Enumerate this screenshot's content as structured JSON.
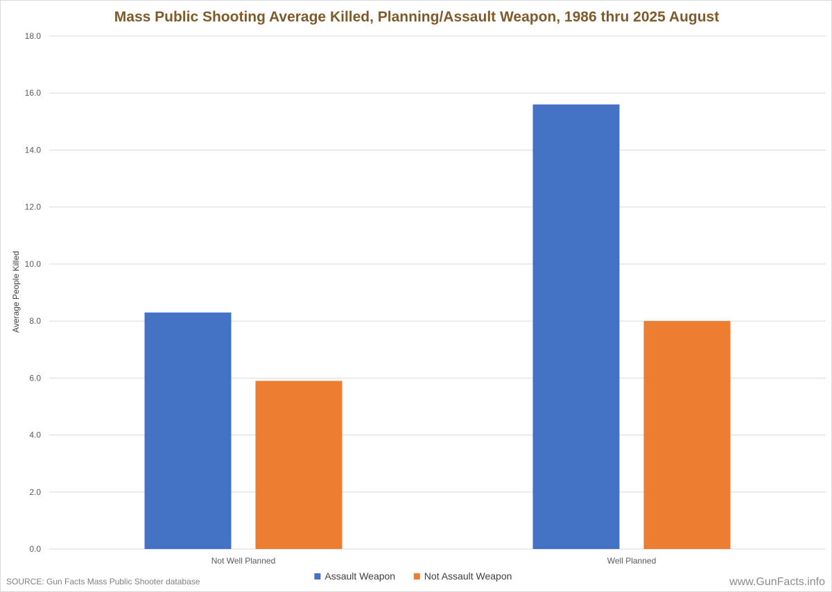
{
  "chart_data": {
    "type": "bar",
    "title": "Mass Public Shooting Average Killed, Planning/Assault Weapon, 1986 thru 2025 August",
    "xlabel": "",
    "ylabel": "Average People Killed",
    "categories": [
      "Not Well Planned",
      "Well Planned"
    ],
    "series": [
      {
        "name": "Assault Weapon",
        "color": "#4472c4",
        "values": [
          8.3,
          15.6
        ]
      },
      {
        "name": "Not Assault Weapon",
        "color": "#ed7d31",
        "values": [
          5.9,
          8.0
        ]
      }
    ],
    "ylim": [
      0,
      18
    ],
    "yticks": [
      "0.0",
      "2.0",
      "4.0",
      "6.0",
      "8.0",
      "10.0",
      "12.0",
      "14.0",
      "16.0",
      "18.0"
    ],
    "grid": true,
    "legend_position": "bottom"
  },
  "footer": {
    "source": "SOURCE: Gun Facts Mass Public Shooter database",
    "site": "www.GunFacts.info"
  }
}
